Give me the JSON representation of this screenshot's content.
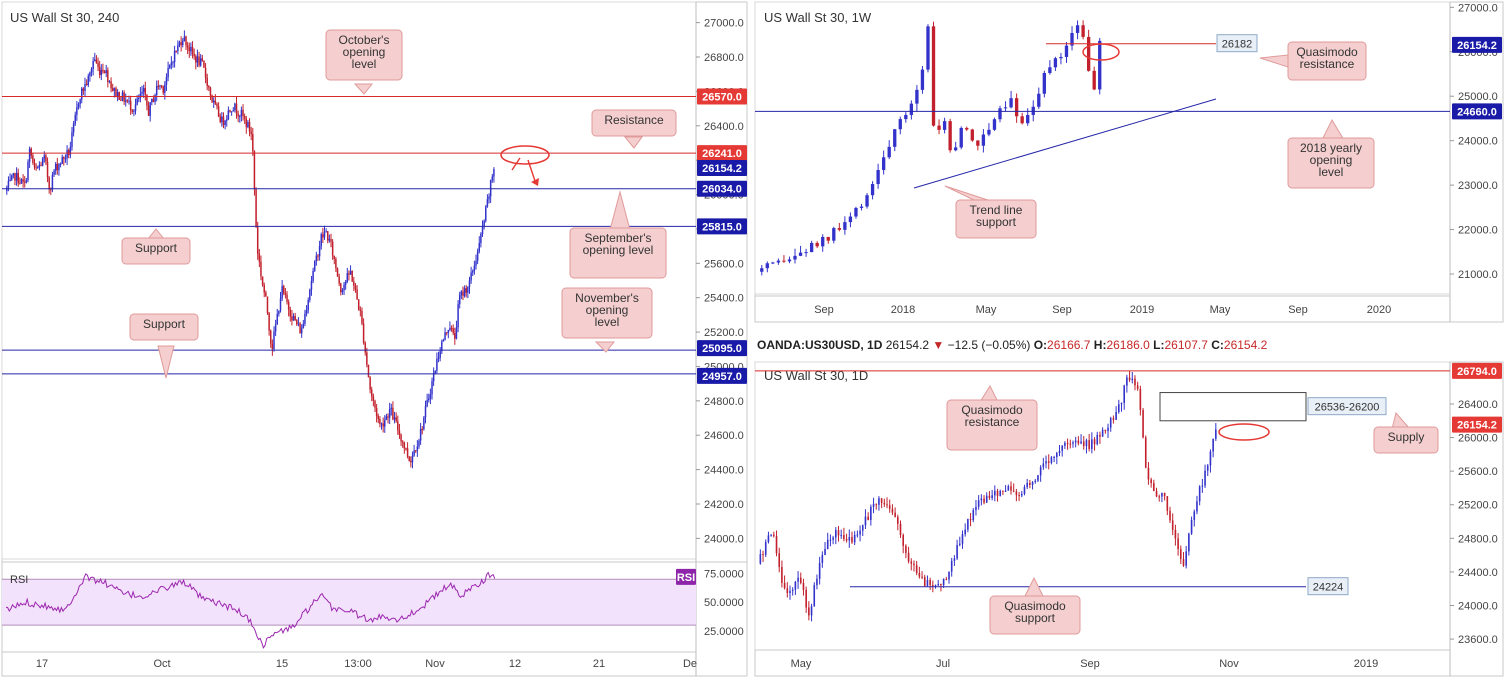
{
  "colors": {
    "up": "#3333cc",
    "down": "#c2202c",
    "red_line": "#d62a2a",
    "blue_line": "#2626a8",
    "callout_fill": "#f5cfcf",
    "callout_stroke": "#e09a9a",
    "rsi_line": "#9c27b0",
    "rsi_fill": "#f3e2fb",
    "red_tag": "#e53935",
    "blue_tag": "#1a1aa8",
    "rsi_tag": "#8e24aa"
  },
  "chart_data": [
    {
      "id": "h4",
      "type": "candlestick",
      "title": "US Wall St 30, 240",
      "ylim": [
        23880,
        27120
      ],
      "y_ticks": [
        "27000.0",
        "26800.0",
        "26600.0",
        "26400.0",
        "26200.0",
        "26000.0",
        "25800.0",
        "25600.0",
        "25400.0",
        "25200.0",
        "25000.0",
        "24800.0",
        "24600.0",
        "24400.0",
        "24200.0",
        "24000.0"
      ],
      "x_ticks": [
        "17",
        "Oct",
        "15",
        "13:00",
        "Nov",
        "12",
        "21",
        "De"
      ],
      "close_path": [
        [
          0,
          26020
        ],
        [
          2,
          26110
        ],
        [
          4,
          26050
        ],
        [
          5,
          26260
        ],
        [
          6,
          26130
        ],
        [
          8,
          26210
        ],
        [
          9,
          26030
        ],
        [
          10,
          26150
        ],
        [
          13,
          26250
        ],
        [
          15,
          26570
        ],
        [
          17,
          26680
        ],
        [
          18,
          26800
        ],
        [
          19,
          26720
        ],
        [
          20,
          26740
        ],
        [
          22,
          26600
        ],
        [
          24,
          26560
        ],
        [
          26,
          26500
        ],
        [
          28,
          26600
        ],
        [
          29,
          26480
        ],
        [
          31,
          26640
        ],
        [
          32,
          26620
        ],
        [
          34,
          26800
        ],
        [
          36,
          26920
        ],
        [
          38,
          26810
        ],
        [
          40,
          26750
        ],
        [
          42,
          26540
        ],
        [
          44,
          26420
        ],
        [
          46,
          26520
        ],
        [
          48,
          26460
        ],
        [
          50,
          26350
        ],
        [
          51,
          25700
        ],
        [
          52,
          25500
        ],
        [
          53,
          25350
        ],
        [
          54,
          25100
        ],
        [
          56,
          25450
        ],
        [
          58,
          25300
        ],
        [
          60,
          25200
        ],
        [
          62,
          25500
        ],
        [
          64,
          25750
        ],
        [
          65,
          25780
        ],
        [
          66,
          25700
        ],
        [
          68,
          25450
        ],
        [
          70,
          25550
        ],
        [
          72,
          25300
        ],
        [
          74,
          24850
        ],
        [
          76,
          24650
        ],
        [
          78,
          24750
        ],
        [
          80,
          24600
        ],
        [
          82,
          24450
        ],
        [
          84,
          24600
        ],
        [
          86,
          24850
        ],
        [
          88,
          25100
        ],
        [
          90,
          25250
        ],
        [
          91,
          25150
        ],
        [
          92,
          25400
        ],
        [
          94,
          25480
        ],
        [
          96,
          25700
        ],
        [
          97,
          25850
        ],
        [
          98,
          26000
        ],
        [
          99,
          26160
        ]
      ],
      "levels": [
        {
          "value": "26570.0",
          "color": "red"
        },
        {
          "value": "26241.0",
          "color": "red"
        },
        {
          "value": "26154.2",
          "color": "blue"
        },
        {
          "value": "26034.0",
          "color": "blue"
        },
        {
          "value": "25815.0",
          "color": "blue"
        },
        {
          "value": "25095.0",
          "color": "blue"
        },
        {
          "value": "24957.0",
          "color": "blue"
        }
      ],
      "annotations": [
        {
          "text": "October's opening level"
        },
        {
          "text": "Resistance"
        },
        {
          "text": "Support"
        },
        {
          "text": "September's opening level"
        },
        {
          "text": "November's opening level"
        },
        {
          "text": "Support"
        }
      ],
      "rsi": {
        "label": "RSI",
        "tag": "RSI",
        "y_ticks": [
          "75.0000",
          "50.0000",
          "25.0000"
        ],
        "upper": 70,
        "lower": 30,
        "values": [
          [
            0,
            43
          ],
          [
            4,
            50
          ],
          [
            8,
            47
          ],
          [
            12,
            43
          ],
          [
            16,
            72
          ],
          [
            20,
            67
          ],
          [
            24,
            57
          ],
          [
            28,
            55
          ],
          [
            32,
            62
          ],
          [
            36,
            68
          ],
          [
            40,
            52
          ],
          [
            44,
            48
          ],
          [
            48,
            40
          ],
          [
            50,
            30
          ],
          [
            52,
            12
          ],
          [
            54,
            22
          ],
          [
            58,
            28
          ],
          [
            62,
            48
          ],
          [
            64,
            55
          ],
          [
            66,
            45
          ],
          [
            70,
            42
          ],
          [
            74,
            33
          ],
          [
            76,
            38
          ],
          [
            80,
            35
          ],
          [
            84,
            45
          ],
          [
            86,
            52
          ],
          [
            90,
            66
          ],
          [
            92,
            55
          ],
          [
            94,
            62
          ],
          [
            96,
            67
          ],
          [
            98,
            74
          ],
          [
            99,
            72
          ]
        ]
      }
    },
    {
      "id": "weekly",
      "type": "candlestick",
      "title": "US Wall St 30, 1W",
      "ylim": [
        20550,
        27120
      ],
      "y_ticks": [
        "27000.0",
        "26000.0",
        "25000.0",
        "24000.0",
        "23000.0",
        "22000.0",
        "21000.0"
      ],
      "x_ticks": [
        "Sep",
        "2018",
        "May",
        "Sep",
        "2019",
        "May",
        "Sep",
        "2020"
      ],
      "close_path": [
        [
          0,
          21050
        ],
        [
          4,
          21200
        ],
        [
          8,
          21500
        ],
        [
          12,
          21800
        ],
        [
          14,
          22000
        ],
        [
          17,
          22400
        ],
        [
          20,
          23150
        ],
        [
          23,
          24100
        ],
        [
          26,
          24700
        ],
        [
          28,
          25600
        ],
        [
          29,
          26600
        ],
        [
          30,
          24200
        ],
        [
          32,
          24400
        ],
        [
          33,
          23600
        ],
        [
          35,
          24400
        ],
        [
          37,
          23800
        ],
        [
          39,
          24300
        ],
        [
          41,
          24700
        ],
        [
          43,
          25000
        ],
        [
          45,
          24300
        ],
        [
          47,
          24900
        ],
        [
          49,
          25600
        ],
        [
          51,
          25800
        ],
        [
          53,
          26350
        ],
        [
          54,
          26700
        ],
        [
          55,
          26600
        ],
        [
          56,
          25700
        ],
        [
          57,
          25100
        ],
        [
          58,
          26150
        ]
      ],
      "levels": [
        {
          "value": "26154.2",
          "color": "blue"
        },
        {
          "value": "24660.0",
          "color": "blue"
        }
      ],
      "boxed_labels": [
        "26182"
      ],
      "annotations": [
        {
          "text": "Quasimodo resistance"
        },
        {
          "text": "2018 yearly opening level"
        },
        {
          "text": "Trend line support"
        }
      ]
    },
    {
      "id": "daily",
      "type": "candlestick",
      "header": {
        "symbol": "OANDA:US30USD, 1D",
        "last": "26154.2",
        "change": "−12.5 (−0.05%)",
        "o_label": "O:",
        "o_value": "26166.7",
        "h_label": "H:",
        "h_value": "26186.0",
        "l_label": "L:",
        "l_value": "26107.7",
        "c_label": "C:",
        "c_value": "26154.2"
      },
      "title": "US Wall St 30, 1D",
      "ylim": [
        23470,
        26900
      ],
      "y_ticks": [
        "26400.0",
        "26000.0",
        "25600.0",
        "25200.0",
        "24800.0",
        "24400.0",
        "24000.0",
        "23600.0"
      ],
      "x_ticks": [
        "May",
        "Jul",
        "Sep",
        "Nov",
        "2019"
      ],
      "close_path": [
        [
          0,
          24500
        ],
        [
          3,
          24900
        ],
        [
          6,
          24100
        ],
        [
          9,
          24300
        ],
        [
          11,
          23900
        ],
        [
          14,
          24700
        ],
        [
          17,
          24900
        ],
        [
          20,
          24750
        ],
        [
          23,
          25000
        ],
        [
          26,
          25300
        ],
        [
          29,
          25100
        ],
        [
          32,
          24600
        ],
        [
          35,
          24300
        ],
        [
          38,
          24200
        ],
        [
          41,
          24400
        ],
        [
          44,
          24900
        ],
        [
          47,
          25200
        ],
        [
          50,
          25300
        ],
        [
          53,
          25400
        ],
        [
          56,
          25300
        ],
        [
          59,
          25500
        ],
        [
          62,
          25700
        ],
        [
          65,
          25900
        ],
        [
          68,
          26000
        ],
        [
          71,
          25900
        ],
        [
          74,
          26100
        ],
        [
          77,
          26300
        ],
        [
          79,
          26700
        ],
        [
          81,
          26650
        ],
        [
          82,
          26300
        ],
        [
          83,
          25600
        ],
        [
          85,
          25300
        ],
        [
          87,
          25300
        ],
        [
          89,
          24900
        ],
        [
          91,
          24500
        ],
        [
          92,
          24800
        ],
        [
          94,
          25300
        ],
        [
          96,
          25600
        ],
        [
          98,
          26150
        ]
      ],
      "levels": [
        {
          "value": "26794.0",
          "color": "red"
        },
        {
          "value": "26154.2",
          "color": "red"
        }
      ],
      "boxed_labels": [
        "26536-26200",
        "24224"
      ],
      "annotations": [
        {
          "text": "Quasimodo resistance"
        },
        {
          "text": "Supply"
        },
        {
          "text": "Quasimodo support"
        }
      ]
    }
  ]
}
